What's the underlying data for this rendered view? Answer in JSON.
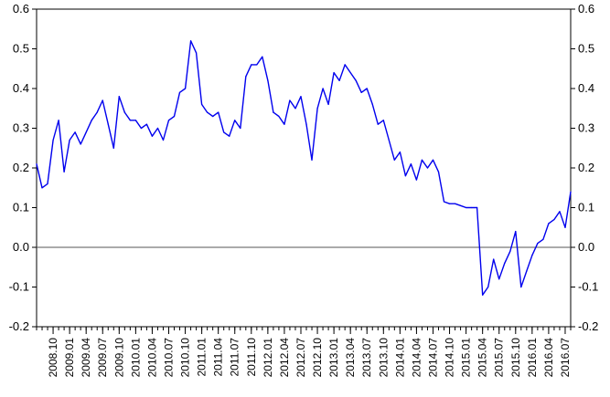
{
  "chart_data": {
    "type": "line",
    "title": "",
    "xlabel": "",
    "ylabel": "",
    "ylim": [
      -0.2,
      0.6
    ],
    "grid": false,
    "legend": "none",
    "zero_line": true,
    "y_ticks": [
      -0.2,
      -0.1,
      0.0,
      0.1,
      0.2,
      0.3,
      0.4,
      0.5,
      0.6
    ],
    "y_tick_labels": [
      "-0.2",
      "-0.1",
      "0.0",
      "0.1",
      "0.2",
      "0.3",
      "0.4",
      "0.5",
      "0.6"
    ],
    "x_tick_labels": [
      "2008.10",
      "2009.01",
      "2009.04",
      "2009.07",
      "2009.10",
      "2010.01",
      "2010.04",
      "2010.07",
      "2010.10",
      "2011.01",
      "2011.04",
      "2011.07",
      "2011.10",
      "2012.01",
      "2012.04",
      "2012.07",
      "2012.10",
      "2013.01",
      "2013.04",
      "2013.07",
      "2013.10",
      "2014.01",
      "2014.04",
      "2014.07",
      "2014.10",
      "2015.01",
      "2015.04",
      "2015.07",
      "2015.10",
      "2016.01",
      "2016.04",
      "2016.07"
    ],
    "series": [
      {
        "color": "#0000ee",
        "x": [
          "2008.07",
          "2008.08",
          "2008.09",
          "2008.10",
          "2008.11",
          "2008.12",
          "2009.01",
          "2009.02",
          "2009.03",
          "2009.04",
          "2009.05",
          "2009.06",
          "2009.07",
          "2009.08",
          "2009.09",
          "2009.10",
          "2009.11",
          "2009.12",
          "2010.01",
          "2010.02",
          "2010.03",
          "2010.04",
          "2010.05",
          "2010.06",
          "2010.07",
          "2010.08",
          "2010.09",
          "2010.10",
          "2010.11",
          "2010.12",
          "2011.01",
          "2011.02",
          "2011.03",
          "2011.04",
          "2011.05",
          "2011.06",
          "2011.07",
          "2011.08",
          "2011.09",
          "2011.10",
          "2011.11",
          "2011.12",
          "2012.01",
          "2012.02",
          "2012.03",
          "2012.04",
          "2012.05",
          "2012.06",
          "2012.07",
          "2012.08",
          "2012.09",
          "2012.10",
          "2012.11",
          "2012.12",
          "2013.01",
          "2013.02",
          "2013.03",
          "2013.04",
          "2013.05",
          "2013.06",
          "2013.07",
          "2013.08",
          "2013.09",
          "2013.10",
          "2013.11",
          "2013.12",
          "2014.01",
          "2014.02",
          "2014.03",
          "2014.04",
          "2014.05",
          "2014.06",
          "2014.07",
          "2014.08",
          "2014.09",
          "2014.10",
          "2014.11",
          "2014.12",
          "2015.01",
          "2015.02",
          "2015.03",
          "2015.04",
          "2015.05",
          "2015.06",
          "2015.07",
          "2015.08",
          "2015.09",
          "2015.10",
          "2015.11",
          "2015.12",
          "2016.01",
          "2016.02",
          "2016.03",
          "2016.04",
          "2016.05",
          "2016.06",
          "2016.07",
          "2016.08"
        ],
        "values": [
          0.21,
          0.15,
          0.16,
          0.27,
          0.32,
          0.19,
          0.27,
          0.29,
          0.26,
          0.29,
          0.32,
          0.34,
          0.37,
          0.31,
          0.25,
          0.38,
          0.34,
          0.32,
          0.32,
          0.3,
          0.31,
          0.28,
          0.3,
          0.27,
          0.32,
          0.33,
          0.39,
          0.4,
          0.52,
          0.49,
          0.36,
          0.34,
          0.33,
          0.34,
          0.29,
          0.28,
          0.32,
          0.3,
          0.43,
          0.46,
          0.46,
          0.48,
          0.42,
          0.34,
          0.33,
          0.31,
          0.37,
          0.35,
          0.38,
          0.31,
          0.22,
          0.35,
          0.4,
          0.36,
          0.44,
          0.42,
          0.46,
          0.44,
          0.42,
          0.39,
          0.4,
          0.36,
          0.31,
          0.32,
          0.27,
          0.22,
          0.24,
          0.18,
          0.21,
          0.17,
          0.22,
          0.2,
          0.22,
          0.19,
          0.115,
          0.11,
          0.11,
          0.105,
          0.1,
          0.1,
          0.1,
          -0.12,
          -0.1,
          -0.03,
          -0.08,
          -0.04,
          -0.01,
          0.04,
          -0.1,
          -0.06,
          -0.02,
          0.01,
          0.02,
          0.06,
          0.07,
          0.09,
          0.05,
          0.14
        ]
      }
    ]
  }
}
